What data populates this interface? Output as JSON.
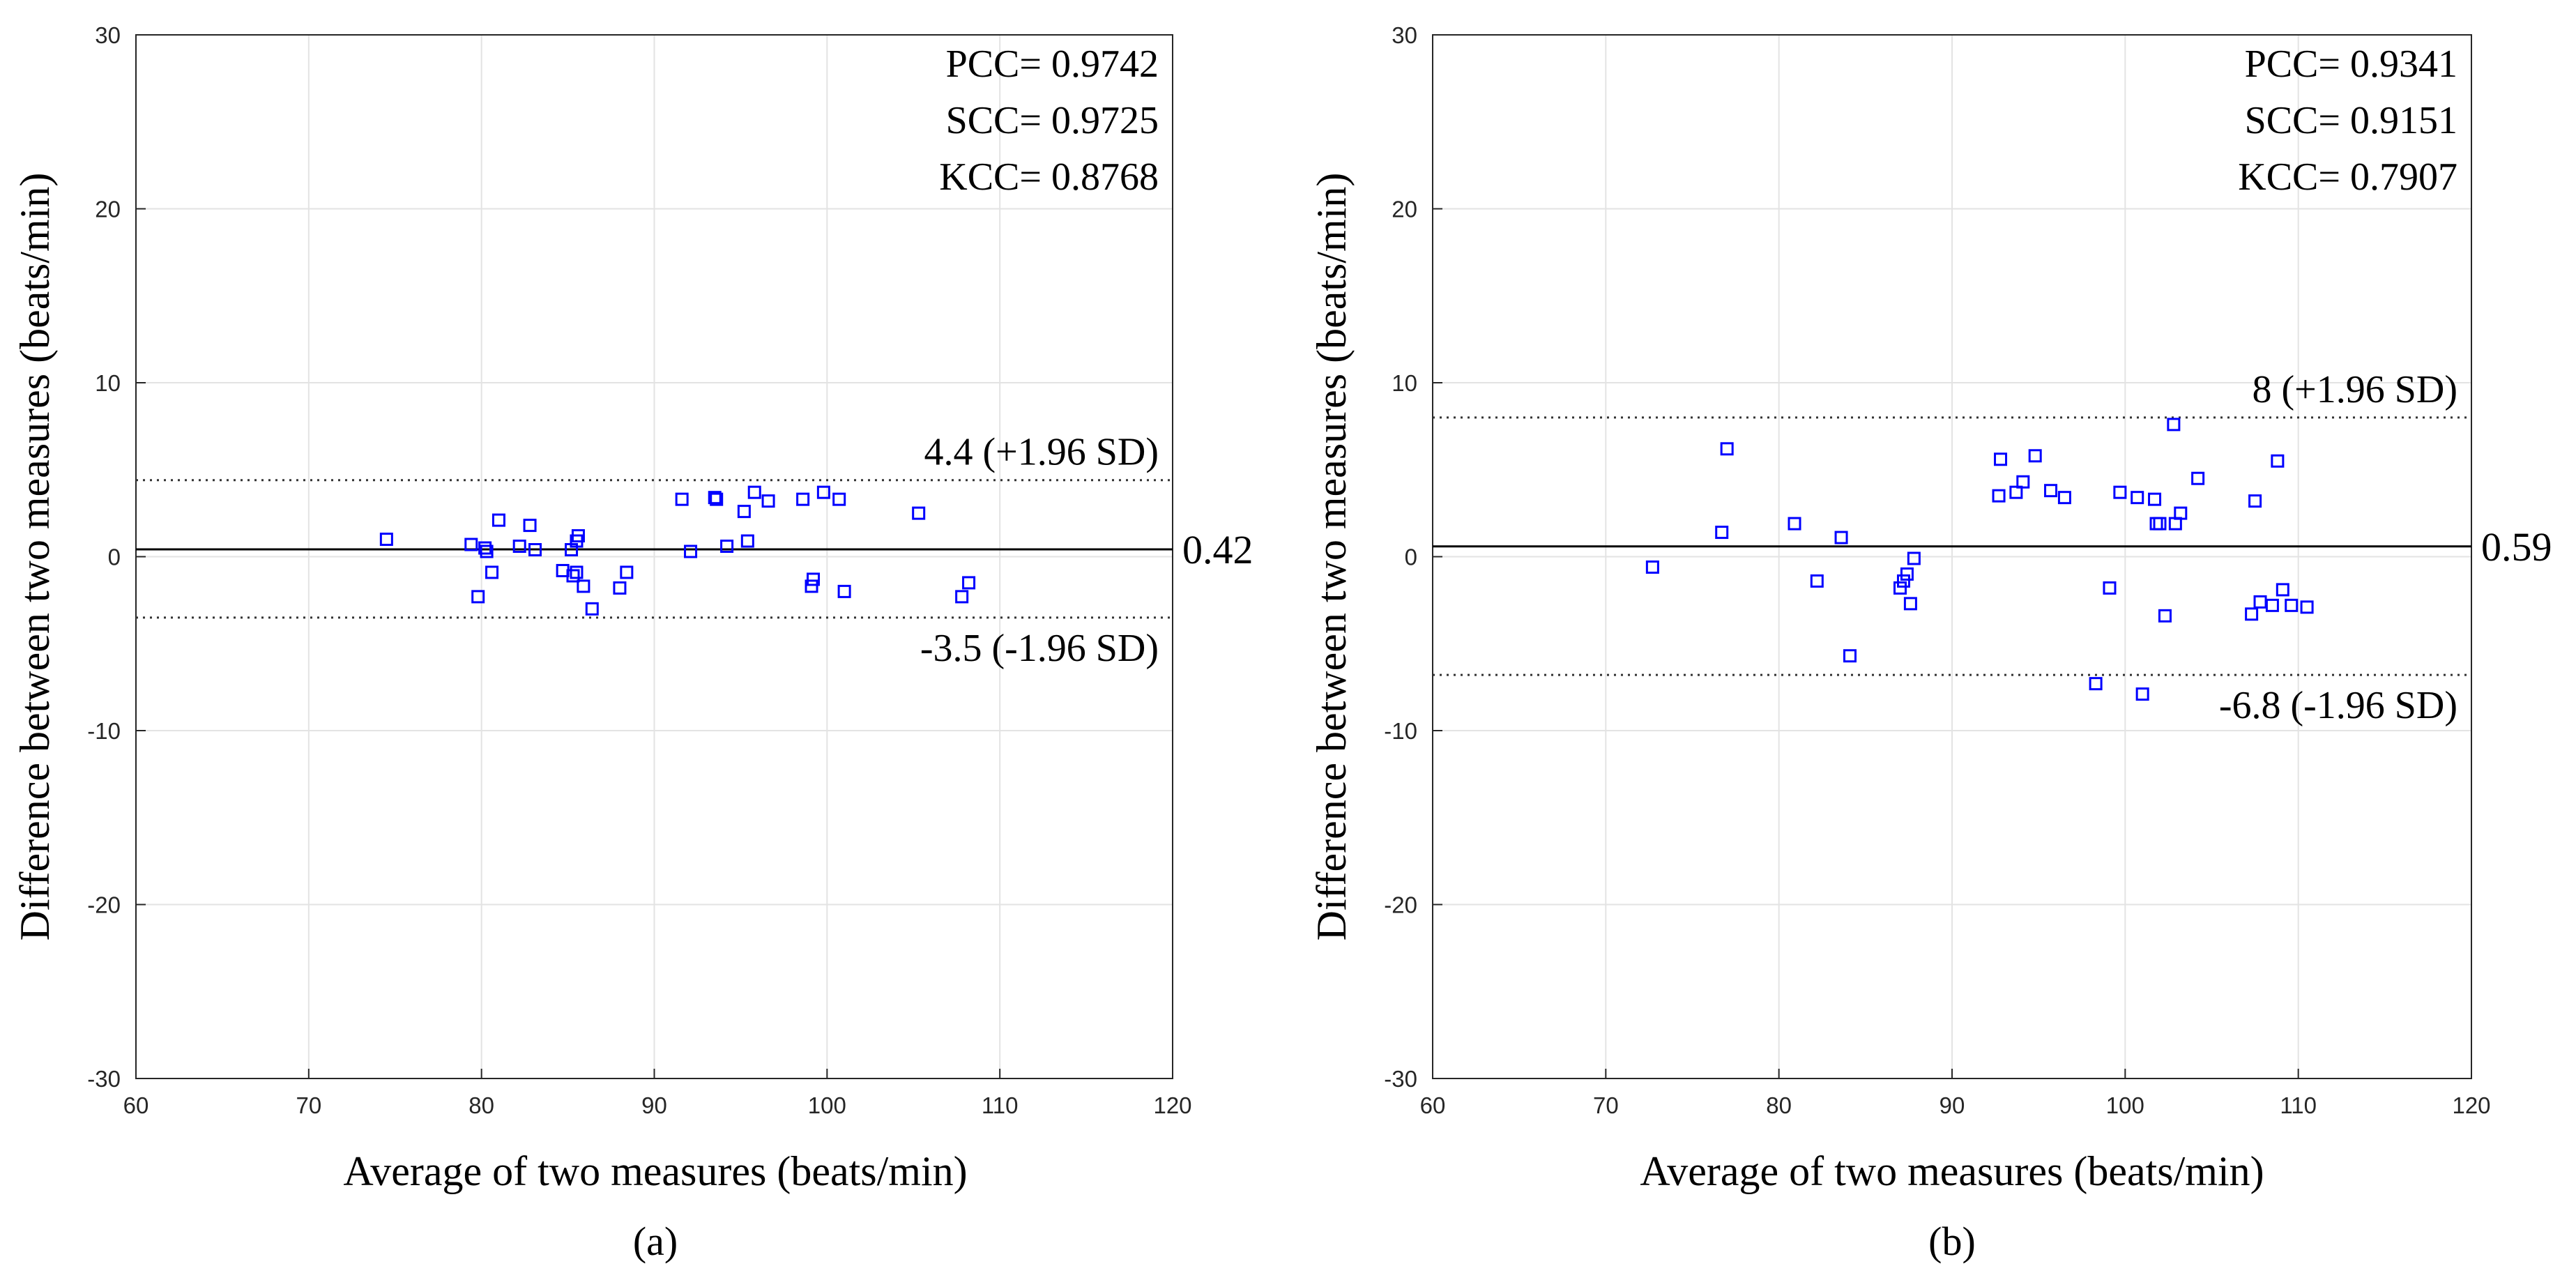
{
  "chart_data": [
    {
      "type": "scatter",
      "panel_label": "(a)",
      "xlabel": "Average of two measures (beats/min)",
      "ylabel": "Difference between two measures (beats/min)",
      "xlim": [
        60,
        120
      ],
      "ylim": [
        -30,
        30
      ],
      "xticks": [
        "60",
        "70",
        "80",
        "90",
        "100",
        "110",
        "120"
      ],
      "yticks": [
        "30",
        "20",
        "10",
        "0",
        "-10",
        "-20",
        "-30"
      ],
      "grid": true,
      "marker": "square",
      "marker_color": "#0000ff",
      "stats": [
        "PCC= 0.9742",
        "SCC= 0.9725",
        "KCC= 0.8768"
      ],
      "mean": 0.42,
      "mean_label": "0.42",
      "upper_loa": 4.4,
      "upper_label": "4.4 (+1.96 SD)",
      "lower_loa": -3.5,
      "lower_label": "-3.5 (-1.96 SD)",
      "points": [
        [
          74.5,
          1.0
        ],
        [
          79.4,
          0.7
        ],
        [
          79.8,
          -2.3
        ],
        [
          80.2,
          0.5
        ],
        [
          80.3,
          0.3
        ],
        [
          80.6,
          -0.9
        ],
        [
          81.0,
          2.1
        ],
        [
          82.2,
          0.6
        ],
        [
          82.8,
          1.8
        ],
        [
          83.1,
          0.4
        ],
        [
          84.7,
          -0.8
        ],
        [
          85.2,
          0.4
        ],
        [
          85.3,
          -1.1
        ],
        [
          85.5,
          0.9
        ],
        [
          85.6,
          1.2
        ],
        [
          85.5,
          -0.9
        ],
        [
          85.9,
          -1.7
        ],
        [
          86.4,
          -3.0
        ],
        [
          88.0,
          -1.8
        ],
        [
          88.4,
          -0.9
        ],
        [
          91.6,
          3.3
        ],
        [
          92.1,
          0.3
        ],
        [
          93.5,
          3.4
        ],
        [
          93.6,
          3.3
        ],
        [
          94.2,
          0.6
        ],
        [
          95.2,
          2.6
        ],
        [
          95.4,
          0.9
        ],
        [
          95.8,
          3.7
        ],
        [
          96.6,
          3.2
        ],
        [
          98.6,
          3.3
        ],
        [
          99.1,
          -1.7
        ],
        [
          99.2,
          -1.3
        ],
        [
          99.8,
          3.7
        ],
        [
          100.7,
          3.3
        ],
        [
          101.0,
          -2.0
        ],
        [
          105.3,
          2.5
        ],
        [
          107.8,
          -2.3
        ],
        [
          108.2,
          -1.5
        ]
      ]
    },
    {
      "type": "scatter",
      "panel_label": "(b)",
      "xlabel": "Average of two measures (beats/min)",
      "ylabel": "Difference between two measures (beats/min)",
      "xlim": [
        60,
        120
      ],
      "ylim": [
        -30,
        30
      ],
      "xticks": [
        "60",
        "70",
        "80",
        "90",
        "100",
        "110",
        "120"
      ],
      "yticks": [
        "30",
        "20",
        "10",
        "0",
        "-10",
        "-20",
        "-30"
      ],
      "grid": true,
      "marker": "square",
      "marker_color": "#0000ff",
      "stats": [
        "PCC= 0.9341",
        "SCC= 0.9151",
        "KCC= 0.7907"
      ],
      "mean": 0.59,
      "mean_label": "0.59",
      "upper_loa": 8,
      "upper_label": "8 (+1.96 SD)",
      "lower_loa": -6.8,
      "lower_label": "-6.8 (-1.96 SD)",
      "points": [
        [
          72.7,
          -0.6
        ],
        [
          76.7,
          1.4
        ],
        [
          77.0,
          6.2
        ],
        [
          80.9,
          1.9
        ],
        [
          82.2,
          -1.4
        ],
        [
          83.6,
          1.1
        ],
        [
          84.1,
          -5.7
        ],
        [
          87.0,
          -1.8
        ],
        [
          87.2,
          -1.4
        ],
        [
          87.4,
          -1.0
        ],
        [
          87.6,
          -2.7
        ],
        [
          87.8,
          -0.1
        ],
        [
          92.7,
          3.5
        ],
        [
          92.8,
          5.6
        ],
        [
          93.7,
          3.7
        ],
        [
          94.1,
          4.3
        ],
        [
          94.8,
          5.8
        ],
        [
          95.7,
          3.8
        ],
        [
          96.5,
          3.4
        ],
        [
          98.3,
          -7.3
        ],
        [
          99.1,
          -1.8
        ],
        [
          99.7,
          3.7
        ],
        [
          100.7,
          3.4
        ],
        [
          101.0,
          -7.9
        ],
        [
          101.7,
          3.3
        ],
        [
          101.8,
          1.9
        ],
        [
          102.0,
          1.9
        ],
        [
          102.3,
          -3.4
        ],
        [
          102.8,
          7.6
        ],
        [
          102.9,
          1.9
        ],
        [
          103.2,
          2.5
        ],
        [
          104.2,
          4.5
        ],
        [
          107.3,
          -3.3
        ],
        [
          107.5,
          3.2
        ],
        [
          107.8,
          -2.6
        ],
        [
          108.5,
          -2.8
        ],
        [
          108.8,
          5.5
        ],
        [
          109.1,
          -1.9
        ],
        [
          109.6,
          -2.8
        ],
        [
          110.5,
          -2.9
        ]
      ]
    }
  ]
}
